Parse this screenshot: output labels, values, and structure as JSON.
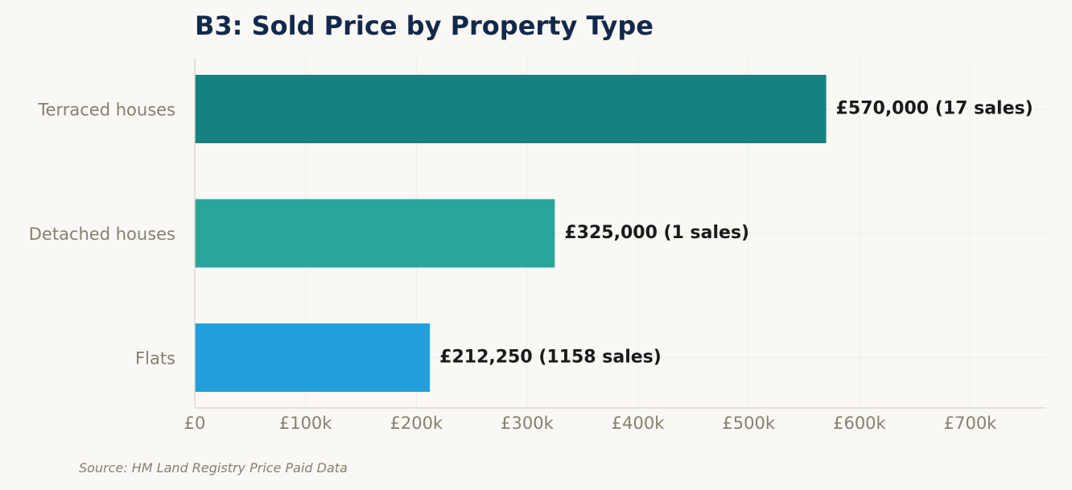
{
  "chart_data": {
    "type": "bar",
    "orientation": "horizontal",
    "title": "B3: Sold Price by Property Type",
    "categories": [
      "Terraced houses",
      "Detached houses",
      "Flats"
    ],
    "values": [
      570000,
      325000,
      212250
    ],
    "sales": [
      17,
      1,
      1158
    ],
    "data_labels": [
      "£570,000  (17 sales)",
      "£325,000  (1 sales)",
      "£212,250  (1158 sales)"
    ],
    "colors": [
      "#178180",
      "#2ba59b",
      "#229fda"
    ],
    "xlim": [
      0,
      770000
    ],
    "x_ticks": [
      0,
      100000,
      200000,
      300000,
      400000,
      500000,
      600000,
      700000
    ],
    "x_tick_labels": [
      "£0",
      "£100k",
      "£200k",
      "£300k",
      "£400k",
      "£500k",
      "£600k",
      "£700k"
    ],
    "grid": true,
    "xlabel": "",
    "ylabel": ""
  },
  "source_note": "Source: HM Land Registry Price Paid Data"
}
